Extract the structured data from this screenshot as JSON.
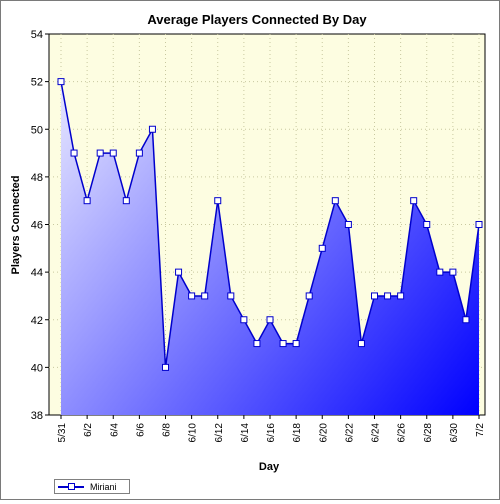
{
  "chart_data": {
    "type": "area",
    "title": "Average Players Connected By Day",
    "xlabel": "Day",
    "ylabel": "Players Connected",
    "ylim": [
      38,
      54
    ],
    "yticks": [
      38,
      40,
      42,
      44,
      46,
      48,
      50,
      52,
      54
    ],
    "x": [
      "5/31",
      "6/1",
      "6/2",
      "6/3",
      "6/4",
      "6/5",
      "6/6",
      "6/7",
      "6/8",
      "6/9",
      "6/10",
      "6/11",
      "6/12",
      "6/13",
      "6/14",
      "6/15",
      "6/16",
      "6/17",
      "6/18",
      "6/19",
      "6/20",
      "6/21",
      "6/22",
      "6/23",
      "6/24",
      "6/25",
      "6/26",
      "6/27",
      "6/28",
      "6/29",
      "6/30",
      "7/1",
      "7/2"
    ],
    "xtick_labels": [
      "5/31",
      "6/2",
      "6/4",
      "6/6",
      "6/8",
      "6/10",
      "6/12",
      "6/14",
      "6/16",
      "6/18",
      "6/20",
      "6/22",
      "6/24",
      "6/26",
      "6/28",
      "6/30",
      "7/2"
    ],
    "series": [
      {
        "name": "Miriani",
        "values": [
          52,
          49,
          47,
          49,
          49,
          47,
          49,
          50,
          40,
          44,
          43,
          43,
          47,
          43,
          42,
          41,
          42,
          41,
          41,
          43,
          45,
          47,
          46,
          41,
          43,
          43,
          43,
          47,
          46,
          44,
          44,
          42,
          46
        ]
      }
    ],
    "grid": true,
    "legend_position": "bottom-left",
    "colors": {
      "plot_background": "#fdfde1",
      "line": "#0000cc",
      "fill_light": "#e6e6ff",
      "fill_dark": "#0000ff",
      "grid": "#c8c8a0"
    }
  }
}
